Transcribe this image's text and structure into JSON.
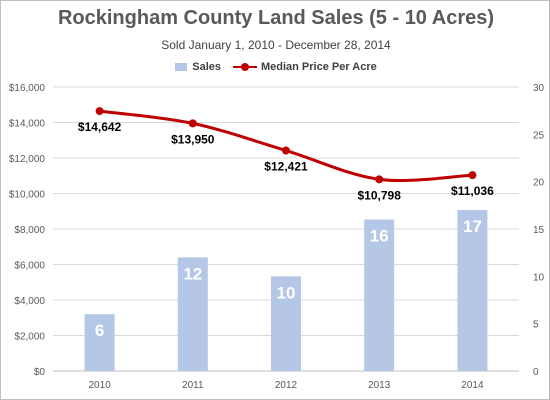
{
  "title": "Rockingham County Land Sales (5 - 10 Acres)",
  "subtitle": "Sold January 1, 2010 - December 28, 2014",
  "legend": {
    "sales": "Sales",
    "median": "Median Price Per Acre"
  },
  "colors": {
    "bar": "#b4c7e7",
    "line": "#c00000",
    "grid": "#d9d9d9",
    "axis_text": "#595959"
  },
  "chart_data": {
    "type": "bar",
    "categories": [
      "2010",
      "2011",
      "2012",
      "2013",
      "2014"
    ],
    "series": [
      {
        "name": "Sales",
        "type": "bar",
        "axis": "right",
        "values": [
          6,
          12,
          10,
          16,
          17
        ],
        "labels": [
          "6",
          "12",
          "10",
          "16",
          "17"
        ]
      },
      {
        "name": "Median Price Per Acre",
        "type": "line",
        "axis": "left",
        "values": [
          14642,
          13950,
          12421,
          10798,
          11036
        ],
        "labels": [
          "$14,642",
          "$13,950",
          "$12,421",
          "$10,798",
          "$11,036"
        ]
      }
    ],
    "left_axis": {
      "range": [
        0,
        16000
      ],
      "ticks": [
        "$0",
        "$2,000",
        "$4,000",
        "$6,000",
        "$8,000",
        "$10,000",
        "$12,000",
        "$14,000",
        "$16,000"
      ]
    },
    "right_axis": {
      "range": [
        0,
        30
      ],
      "ticks": [
        "0",
        "5",
        "10",
        "15",
        "20",
        "25",
        "30"
      ]
    },
    "grid": true,
    "legend_position": "top"
  }
}
